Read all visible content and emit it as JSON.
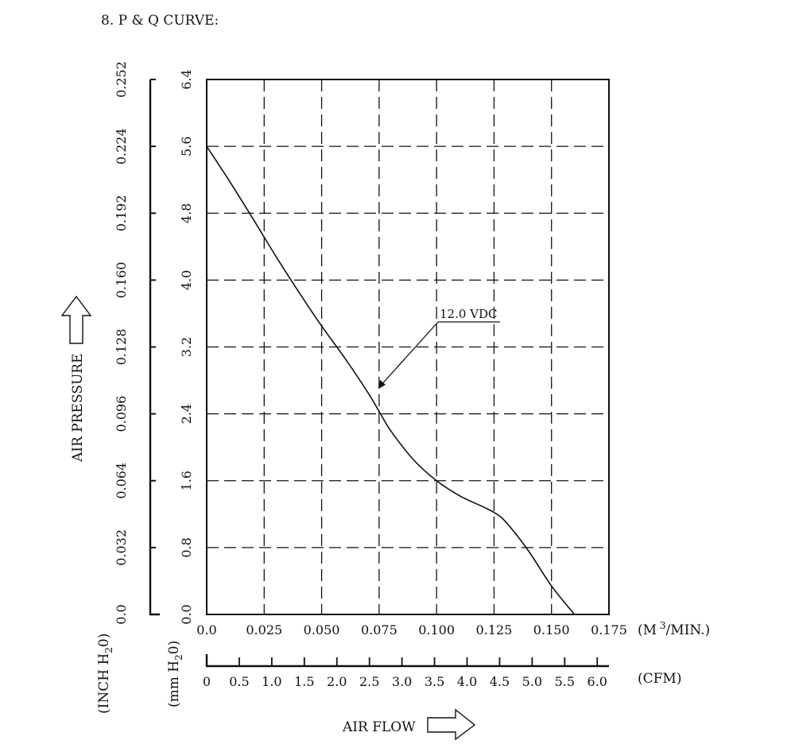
{
  "page_title": "8. P & Q CURVE:",
  "chart_data": {
    "type": "line",
    "title": "8. P & Q CURVE:",
    "ylabel": "AIR PRESSURE",
    "xlabel": "AIR FLOW",
    "y_primary": {
      "unit_label": "(mm H2O)",
      "ticks": [
        "0.0",
        "0.8",
        "1.6",
        "2.4",
        "3.2",
        "4.0",
        "4.8",
        "5.6",
        "6.4"
      ],
      "ylim": [
        0,
        6.4
      ]
    },
    "y_secondary": {
      "unit_label": "(INCH H2O)",
      "ticks": [
        "0.0",
        "0.032",
        "0.064",
        "0.096",
        "0.128",
        "0.160",
        "0.192",
        "0.224",
        "0.252"
      ]
    },
    "x_primary": {
      "unit_label": "(M3/MIN.)",
      "ticks": [
        "0.0",
        "0.025",
        "0.050",
        "0.075",
        "0.100",
        "0.125",
        "0.150",
        "0.175"
      ],
      "xlim": [
        0,
        0.175
      ]
    },
    "x_secondary": {
      "unit_label": "(CFM)",
      "ticks": [
        "0",
        "0.5",
        "1.0",
        "1.5",
        "2.0",
        "2.5",
        "3.0",
        "3.5",
        "4.0",
        "4.5",
        "5.0",
        "5.5",
        "6.0"
      ]
    },
    "grid": true,
    "series": [
      {
        "name": "12.0 VDC",
        "x": [
          0.0,
          0.01,
          0.02,
          0.03,
          0.04,
          0.05,
          0.06,
          0.07,
          0.075,
          0.08,
          0.09,
          0.1,
          0.11,
          0.12,
          0.125,
          0.13,
          0.14,
          0.15,
          0.16
        ],
        "y": [
          5.6,
          5.18,
          4.74,
          4.29,
          3.86,
          3.45,
          3.07,
          2.66,
          2.43,
          2.2,
          1.85,
          1.6,
          1.42,
          1.29,
          1.22,
          1.11,
          0.76,
          0.34,
          0.0
        ]
      }
    ]
  }
}
